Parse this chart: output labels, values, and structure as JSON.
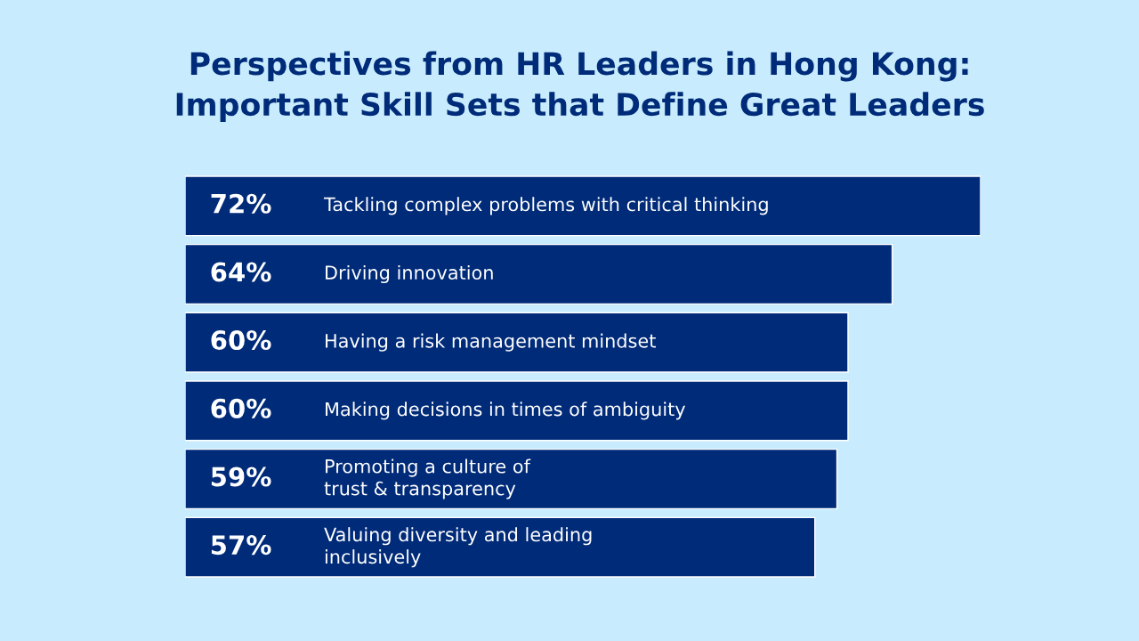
{
  "chart_data": {
    "type": "bar",
    "orientation": "horizontal",
    "title": "Perspectives from HR Leaders in Hong Kong:\nImportant Skill Sets that Define Great Leaders",
    "categories": [
      "Tackling complex problems with critical thinking",
      "Driving innovation",
      "Having a risk management mindset",
      "Making decisions in times of ambiguity",
      "Promoting a culture of\ntrust & transparency",
      "Valuing diversity and leading\ninclusively"
    ],
    "values": [
      72,
      64,
      60,
      60,
      59,
      57
    ],
    "value_labels": [
      "72%",
      "64%",
      "60%",
      "60%",
      "59%",
      "57%"
    ],
    "color": "#002b79"
  }
}
